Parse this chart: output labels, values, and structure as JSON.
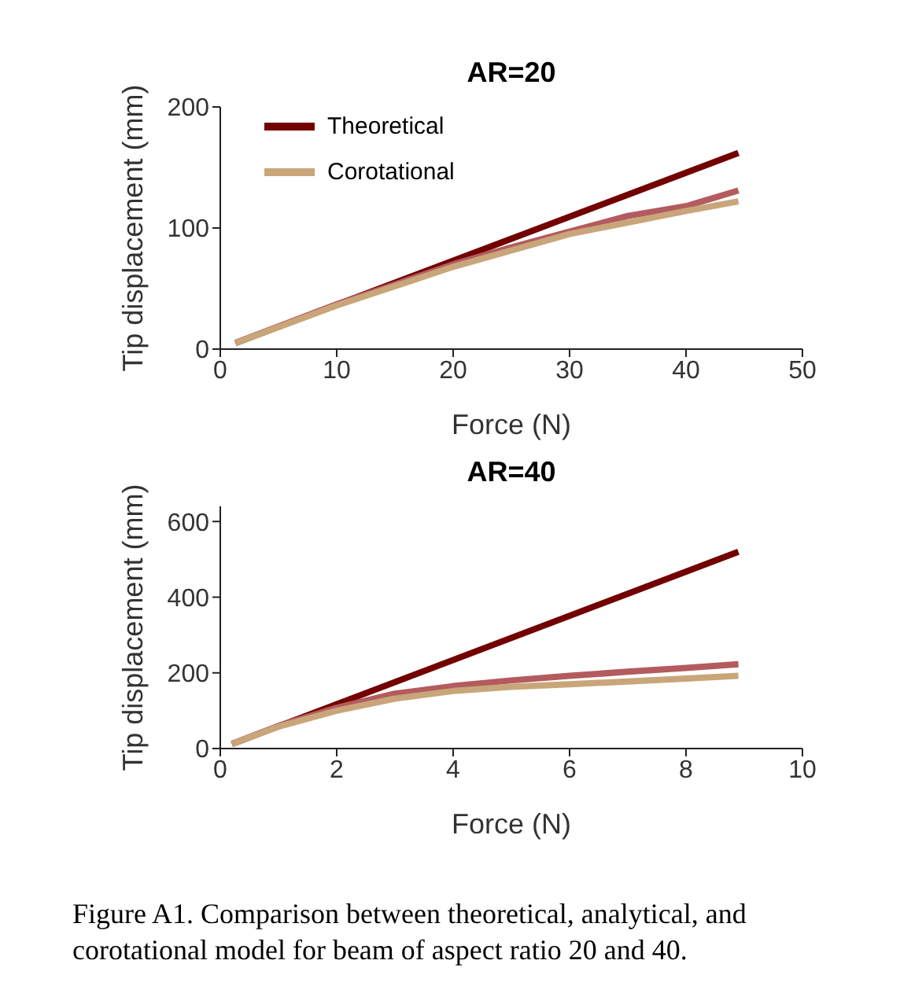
{
  "chart_data": [
    {
      "type": "line",
      "title": "AR=20",
      "xlabel": "Force (N)",
      "ylabel": "Tip displacement (mm)",
      "xlim": [
        0,
        50
      ],
      "xticks": [
        0,
        10,
        20,
        30,
        40,
        50
      ],
      "ylim": [
        0,
        200
      ],
      "yticks": [
        0,
        100,
        200
      ],
      "grid": false,
      "legend": "top left",
      "marker": "none",
      "line_style": "solid",
      "series": [
        {
          "name": "Theoretical",
          "color": "#730000",
          "x": [
            1.3,
            44.5
          ],
          "values": [
            5,
            162
          ]
        },
        {
          "color": "#b35b5e",
          "x": [
            1.3,
            10,
            20,
            25,
            30,
            35,
            40,
            44.5
          ],
          "values": [
            5,
            37,
            70,
            84,
            97,
            110,
            118,
            131
          ]
        },
        {
          "name": "Corotational",
          "color": "#c9a57a",
          "x": [
            1.3,
            10,
            20,
            30,
            40,
            44.5
          ],
          "values": [
            5,
            36,
            68,
            95,
            114,
            122
          ]
        }
      ]
    },
    {
      "type": "line",
      "title": "AR=40",
      "xlabel": "Force (N)",
      "ylabel": "Tip displacement (mm)",
      "xlim": [
        0,
        10
      ],
      "xticks": [
        0,
        2,
        4,
        6,
        8,
        10
      ],
      "ylim": [
        0,
        640
      ],
      "yticks": [
        0,
        200,
        400,
        600
      ],
      "grid": false,
      "marker": "none",
      "line_style": "solid",
      "series": [
        {
          "color": "#730000",
          "x": [
            0.2,
            8.9
          ],
          "values": [
            12,
            520
          ]
        },
        {
          "color": "#b35b5e",
          "x": [
            0.2,
            1,
            2,
            3,
            4,
            5,
            6,
            7,
            8,
            8.9
          ],
          "values": [
            12,
            60,
            108,
            145,
            165,
            180,
            192,
            203,
            213,
            223
          ]
        },
        {
          "color": "#c9a57a",
          "x": [
            0.2,
            1,
            2,
            3,
            4,
            5,
            6,
            7,
            8,
            8.9
          ],
          "values": [
            12,
            58,
            100,
            132,
            152,
            163,
            170,
            177,
            185,
            192
          ]
        }
      ],
      "annotations": [
        "Figure A1. Comparison between theoretical, analytical, and corotational model for beam of aspect ratio 20 and 40."
      ]
    }
  ]
}
